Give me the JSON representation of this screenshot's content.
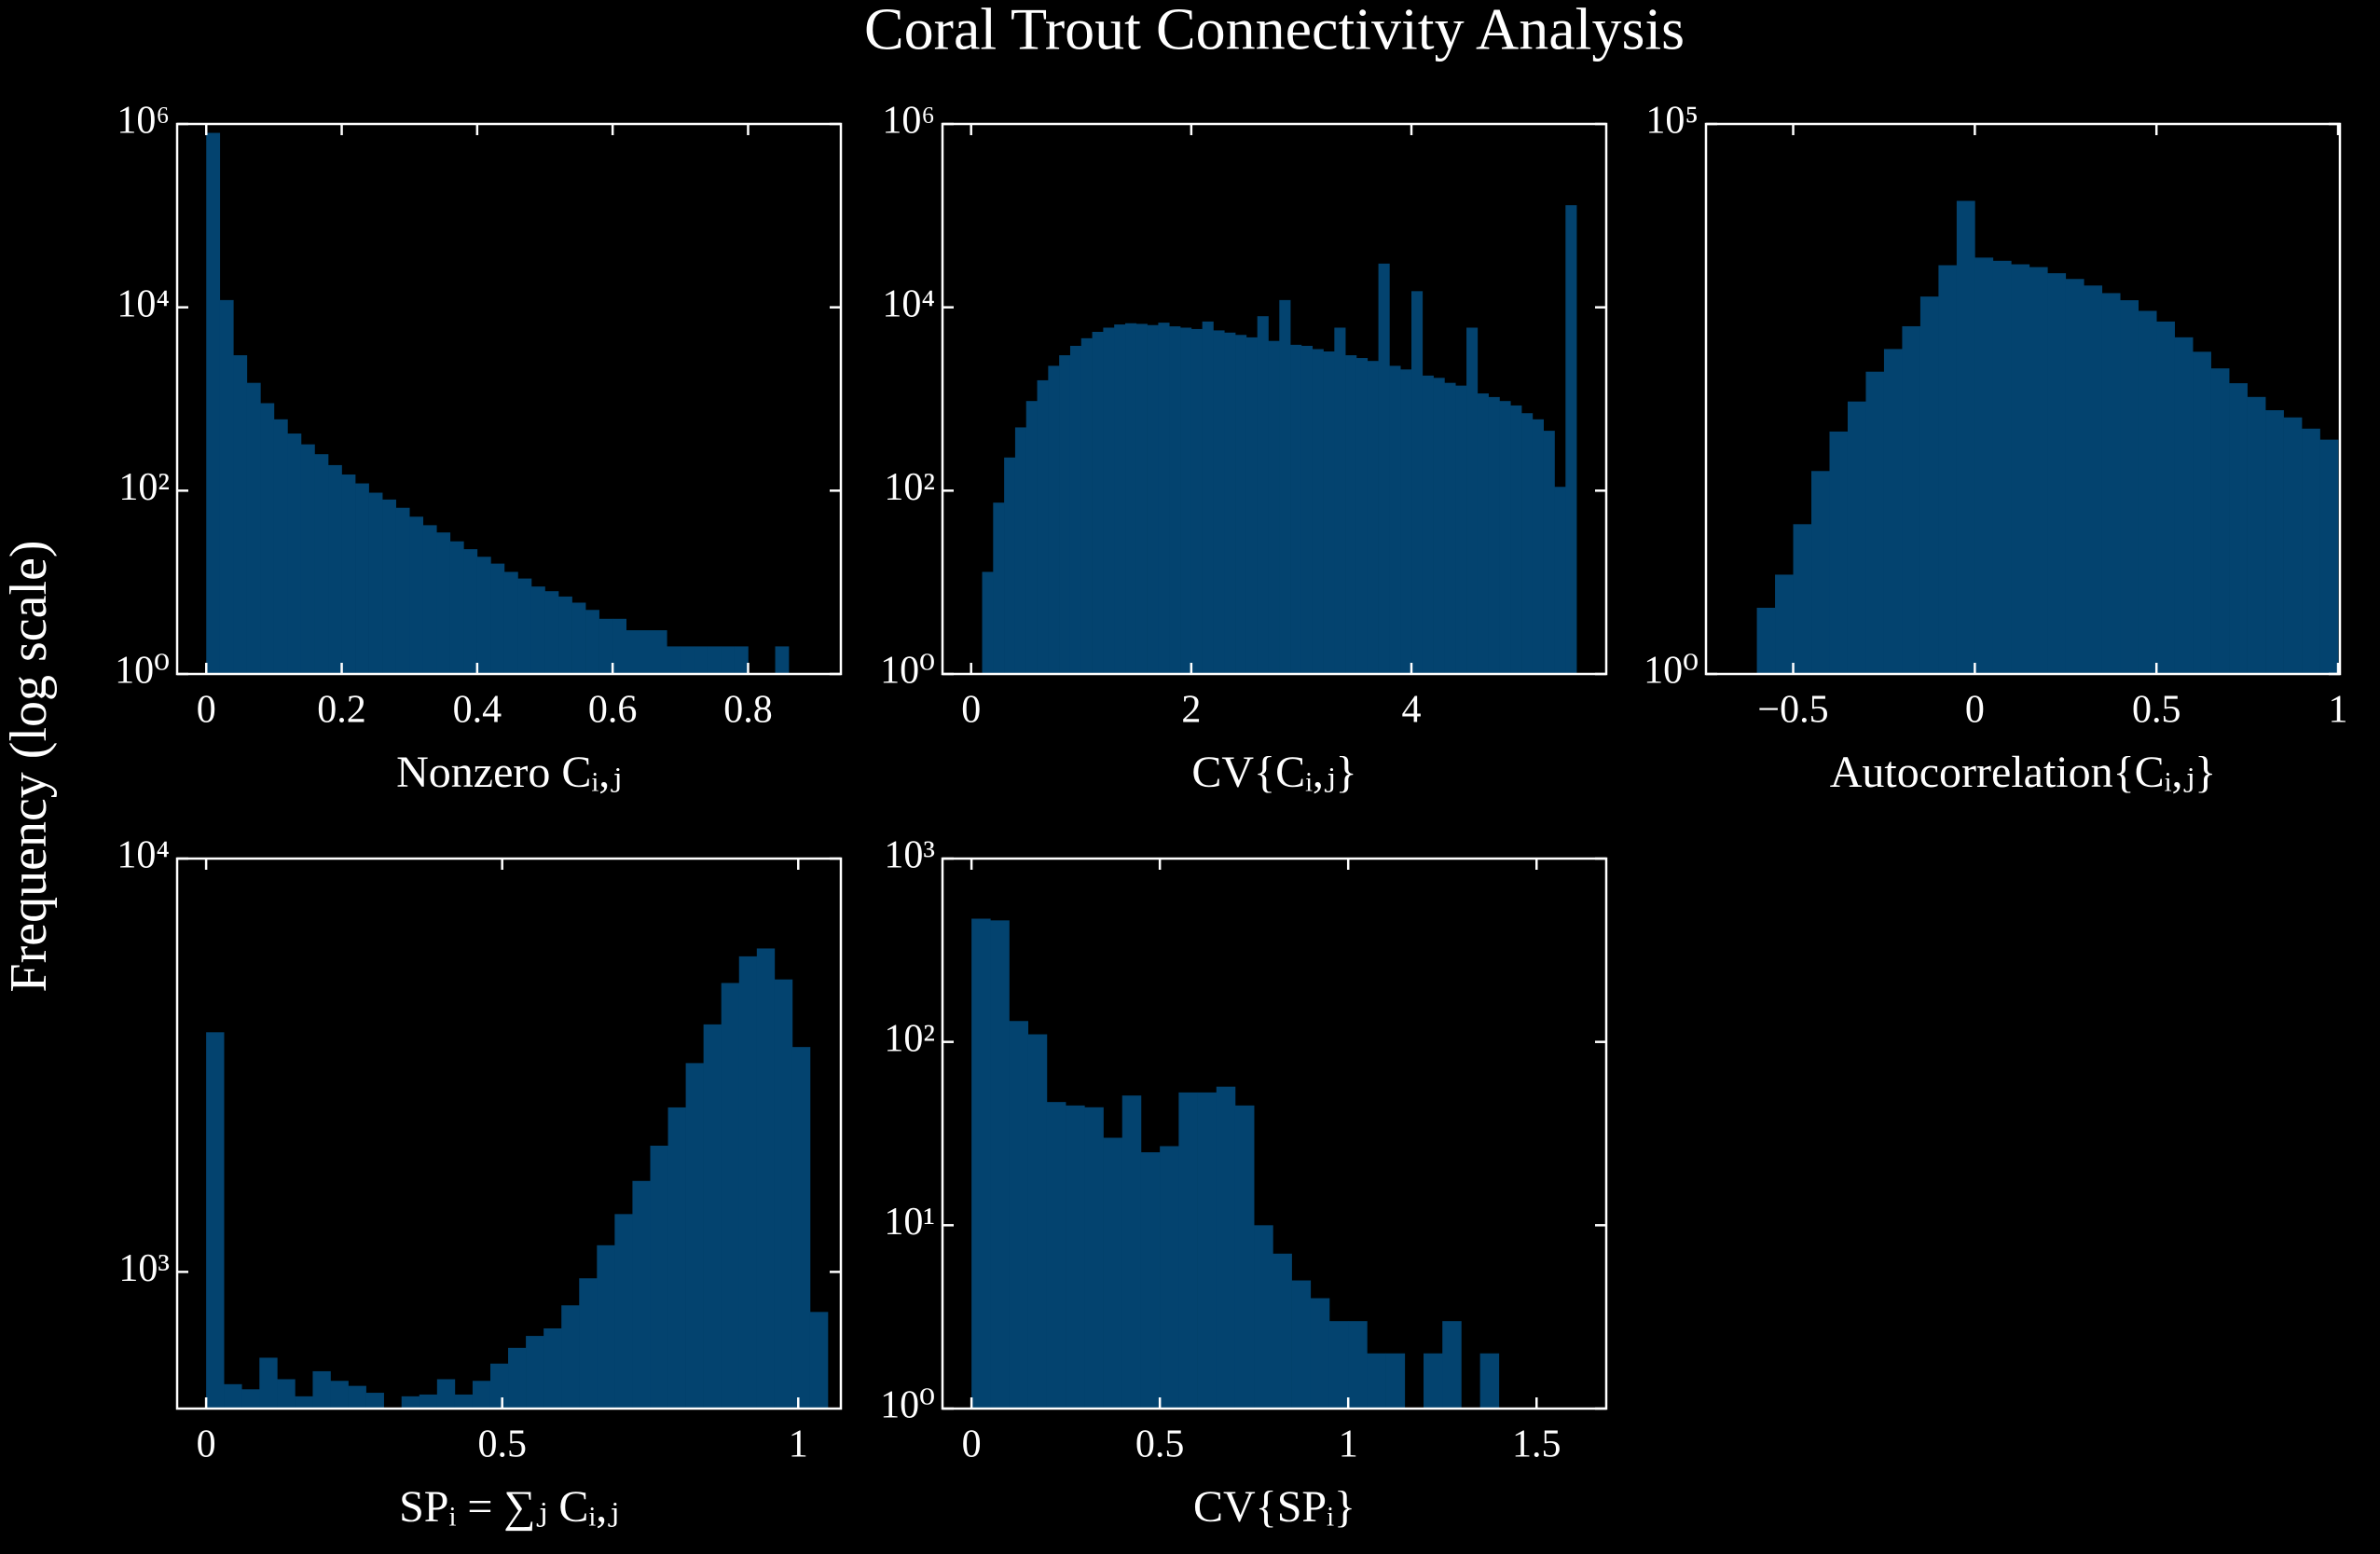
{
  "title": "Coral Trout Connectivity Analysis",
  "ylabel": "Frequency (log scale)",
  "chart_data": [
    {
      "type": "histogram",
      "xlabel": "Nonzero Cᵢ,ⱼ",
      "color": "#03436f",
      "log_y": true,
      "bins": [
        0,
        0.02,
        0.04,
        0.06,
        0.08,
        0.1,
        0.12,
        0.14,
        0.16,
        0.18,
        0.2,
        0.22,
        0.24,
        0.26,
        0.28,
        0.3,
        0.32,
        0.34,
        0.36,
        0.38,
        0.4,
        0.42,
        0.44,
        0.46,
        0.48,
        0.5,
        0.52,
        0.54,
        0.56,
        0.58,
        0.6,
        0.62,
        0.64,
        0.66,
        0.68,
        0.7,
        0.72,
        0.74,
        0.76,
        0.78,
        0.8,
        0.82,
        0.84,
        0.86,
        0.88
      ],
      "values": [
        800000,
        12000,
        3000,
        1500,
        900,
        600,
        420,
        320,
        250,
        190,
        150,
        120,
        95,
        80,
        65,
        52,
        42,
        35,
        28,
        23,
        19,
        16,
        13,
        11,
        9,
        8,
        7,
        6,
        5,
        4,
        4,
        3,
        3,
        3,
        2,
        2,
        2,
        2,
        2,
        2,
        1,
        1,
        2,
        1
      ],
      "xlim": [
        -0.043,
        0.937
      ],
      "xticks": [
        0,
        0.2,
        0.4,
        0.6,
        0.8
      ],
      "ylim": [
        1,
        1000000
      ],
      "yticks": [
        {
          "value": 1,
          "label": "10⁰"
        },
        {
          "value": 100,
          "label": "10²"
        },
        {
          "value": 10000,
          "label": "10⁴"
        },
        {
          "value": 1000000,
          "label": "10⁶"
        }
      ]
    },
    {
      "type": "histogram",
      "xlabel": "CV{Cᵢ,ⱼ}",
      "color": "#03436f",
      "log_y": true,
      "bins": [
        0.1,
        0.2,
        0.3,
        0.4,
        0.5,
        0.6,
        0.7,
        0.8,
        0.9,
        1.0,
        1.1,
        1.2,
        1.3,
        1.4,
        1.5,
        1.6,
        1.7,
        1.8,
        1.9,
        2.0,
        2.1,
        2.2,
        2.3,
        2.4,
        2.5,
        2.6,
        2.7,
        2.8,
        2.9,
        3.0,
        3.1,
        3.2,
        3.3,
        3.4,
        3.5,
        3.6,
        3.7,
        3.8,
        3.9,
        4.0,
        4.1,
        4.2,
        4.3,
        4.4,
        4.5,
        4.6,
        4.7,
        4.8,
        4.9,
        5.0,
        5.1,
        5.2,
        5.3,
        5.4,
        5.5
      ],
      "values": [
        13,
        74,
        230,
        490,
        950,
        1600,
        2300,
        3000,
        3800,
        4600,
        5400,
        6000,
        6500,
        6700,
        6600,
        6400,
        6800,
        6200,
        6000,
        5800,
        7000,
        5600,
        5300,
        5000,
        4700,
        8000,
        4300,
        12000,
        3900,
        3800,
        3500,
        3300,
        6000,
        3000,
        2800,
        2600,
        30000,
        2300,
        2100,
        15000,
        1800,
        1700,
        1500,
        1400,
        6000,
        1150,
        1050,
        950,
        850,
        700,
        600,
        450,
        110,
        130000
      ],
      "xlim": [
        -0.26,
        5.77
      ],
      "xticks": [
        0,
        2,
        4
      ],
      "ylim": [
        1,
        1000000
      ],
      "yticks": [
        {
          "value": 1,
          "label": "10⁰"
        },
        {
          "value": 100,
          "label": "10²"
        },
        {
          "value": 10000,
          "label": "10⁴"
        },
        {
          "value": 1000000,
          "label": "10⁶"
        }
      ]
    },
    {
      "type": "histogram",
      "xlabel": "Autocorrelation{Cᵢ,ⱼ}",
      "color": "#03436f",
      "log_y": true,
      "bins": [
        -0.6,
        -0.55,
        -0.5,
        -0.45,
        -0.4,
        -0.35,
        -0.3,
        -0.25,
        -0.2,
        -0.15,
        -0.1,
        -0.05,
        0,
        0.05,
        0.1,
        0.15,
        0.2,
        0.25,
        0.3,
        0.35,
        0.4,
        0.45,
        0.5,
        0.55,
        0.6,
        0.65,
        0.7,
        0.75,
        0.8,
        0.85,
        0.9,
        0.95,
        1.0
      ],
      "values": [
        4,
        8,
        23,
        70,
        160,
        300,
        560,
        900,
        1450,
        2700,
        5200,
        20000,
        6100,
        5700,
        5300,
        5000,
        4400,
        3900,
        3400,
        2900,
        2500,
        2000,
        1600,
        1150,
        850,
        600,
        440,
        330,
        250,
        215,
        170,
        135
      ],
      "xlim": [
        -0.74,
        1.005
      ],
      "xticks": [
        {
          "value": -0.5,
          "label": "−0.5"
        },
        0,
        0.5,
        1
      ],
      "ylim": [
        1,
        100000
      ],
      "yticks": [
        {
          "value": 1,
          "label": "10⁰"
        },
        {
          "value": 100000,
          "label": "10⁵"
        }
      ]
    },
    {
      "type": "histogram",
      "xlabel": "SPᵢ = ∑ⱼ Cᵢ,ⱼ",
      "color": "#03436f",
      "log_y": true,
      "bins": [
        0,
        0.03,
        0.06,
        0.09,
        0.12,
        0.15,
        0.18,
        0.21,
        0.24,
        0.27,
        0.3,
        0.33,
        0.36,
        0.39,
        0.42,
        0.45,
        0.48,
        0.51,
        0.54,
        0.57,
        0.6,
        0.63,
        0.66,
        0.69,
        0.72,
        0.75,
        0.78,
        0.81,
        0.84,
        0.87,
        0.9,
        0.93,
        0.96,
        0.99,
        1.02,
        1.05
      ],
      "values": [
        3800,
        535,
        520,
        620,
        550,
        500,
        575,
        545,
        530,
        510,
        460,
        500,
        505,
        550,
        505,
        545,
        600,
        655,
        700,
        730,
        830,
        965,
        1160,
        1380,
        1660,
        2020,
        2500,
        3200,
        3970,
        5000,
        5800,
        6060,
        5100,
        3500,
        800
      ],
      "xlim": [
        -0.049,
        1.072
      ],
      "xticks": [
        0,
        0.5,
        1
      ],
      "ylim": [
        467,
        10000
      ],
      "yticks": [
        {
          "value": 1000,
          "label": "10³"
        },
        {
          "value": 10000,
          "label": "10⁴"
        }
      ]
    },
    {
      "type": "histogram",
      "xlabel": "CV{SPᵢ}",
      "color": "#03436f",
      "log_y": true,
      "bins": [
        0,
        0.05,
        0.1,
        0.15,
        0.2,
        0.25,
        0.3,
        0.35,
        0.4,
        0.45,
        0.5,
        0.55,
        0.6,
        0.65,
        0.7,
        0.75,
        0.8,
        0.85,
        0.9,
        0.95,
        1.0,
        1.05,
        1.1,
        1.15,
        1.2,
        1.25,
        1.3,
        1.35,
        1.4
      ],
      "values": [
        470,
        460,
        130,
        110,
        47,
        45,
        44,
        30,
        51,
        25,
        27,
        53,
        53,
        57,
        45,
        10,
        7,
        5,
        4,
        3,
        3,
        2,
        2,
        1,
        2,
        3,
        1,
        2
      ],
      "xlim": [
        -0.077,
        1.685
      ],
      "xticks": [
        0,
        0.5,
        1,
        1.5
      ],
      "ylim": [
        1,
        1000
      ],
      "yticks": [
        {
          "value": 1,
          "label": "10⁰"
        },
        {
          "value": 10,
          "label": "10¹"
        },
        {
          "value": 100,
          "label": "10²"
        },
        {
          "value": 1000,
          "label": "10³"
        }
      ]
    }
  ]
}
